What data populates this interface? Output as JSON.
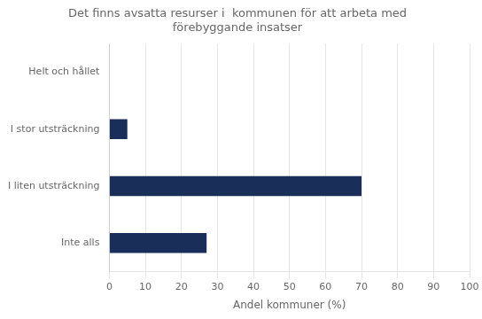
{
  "chart_data": {
    "type": "bar",
    "orientation": "horizontal",
    "title": "Det finns avsatta resurser i  kommunen för att arbeta med\nförebyggande insatser",
    "categories": [
      "Inte alls",
      "I liten utsträckning",
      "I stor utsträckning",
      "Helt och hållet"
    ],
    "values": [
      27,
      70,
      5,
      0
    ],
    "color": "#1a2e5a",
    "xlabel": "Andel kommuner (%)",
    "xlim": [
      0,
      100
    ],
    "xticks": [
      0,
      10,
      20,
      30,
      40,
      50,
      60,
      70,
      80,
      90,
      100
    ],
    "grid": true
  }
}
